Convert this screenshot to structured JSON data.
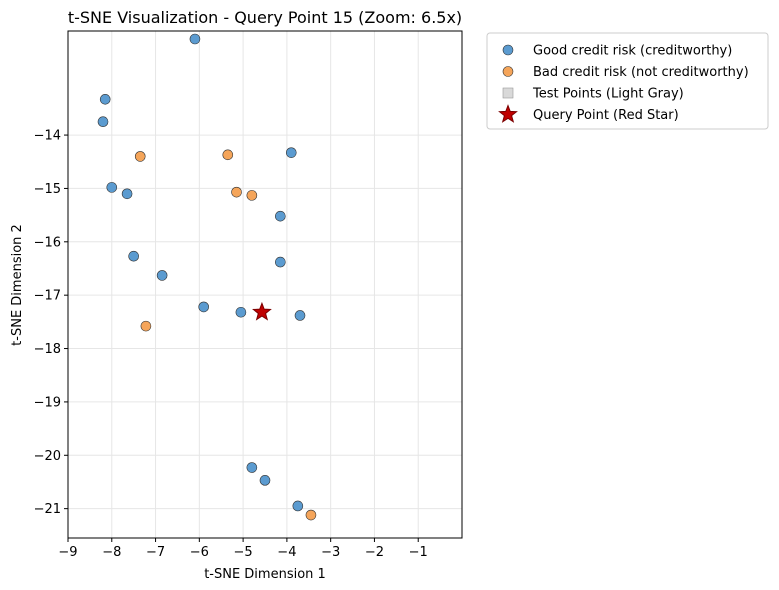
{
  "chart_data": {
    "type": "scatter",
    "title": "t-SNE Visualization - Query Point 15 (Zoom: 6.5x)",
    "xlabel": "t-SNE Dimension 1",
    "ylabel": "t-SNE Dimension 2",
    "xlim": [
      -9,
      0
    ],
    "ylim": [
      -21.55,
      -12.05
    ],
    "xticks": [
      -9,
      -8,
      -7,
      -6,
      -5,
      -4,
      -3,
      -2,
      -1
    ],
    "yticks": [
      -14,
      -15,
      -16,
      -17,
      -18,
      -19,
      -20,
      -21
    ],
    "grid": true,
    "legend_position": "outside-top-right",
    "series": [
      {
        "name": "Good credit risk (creditworthy)",
        "color": "#5b9bd0",
        "marker": "circle",
        "points": [
          [
            -8.15,
            -13.33
          ],
          [
            -8.2,
            -13.75
          ],
          [
            -6.1,
            -12.2
          ],
          [
            -3.9,
            -14.33
          ],
          [
            -8.0,
            -14.98
          ],
          [
            -7.65,
            -15.1
          ],
          [
            -4.15,
            -15.52
          ],
          [
            -7.5,
            -16.27
          ],
          [
            -6.85,
            -16.63
          ],
          [
            -4.15,
            -16.38
          ],
          [
            -5.9,
            -17.22
          ],
          [
            -5.05,
            -17.32
          ],
          [
            -3.7,
            -17.38
          ],
          [
            -4.8,
            -20.23
          ],
          [
            -4.5,
            -20.47
          ],
          [
            -3.75,
            -20.95
          ]
        ]
      },
      {
        "name": "Bad credit risk (not creditworthy)",
        "color": "#f5a55a",
        "marker": "circle",
        "points": [
          [
            -7.35,
            -14.4
          ],
          [
            -5.35,
            -14.37
          ],
          [
            -5.15,
            -15.07
          ],
          [
            -4.8,
            -15.13
          ],
          [
            -7.22,
            -17.58
          ],
          [
            -3.45,
            -21.12
          ]
        ]
      },
      {
        "name": "Test Points (Light Gray)",
        "color": "#d9d9d9",
        "marker": "square",
        "points": []
      },
      {
        "name": "Query Point (Red Star)",
        "color": "#c00000",
        "marker": "star",
        "points": [
          [
            -4.57,
            -17.32
          ]
        ]
      }
    ]
  }
}
